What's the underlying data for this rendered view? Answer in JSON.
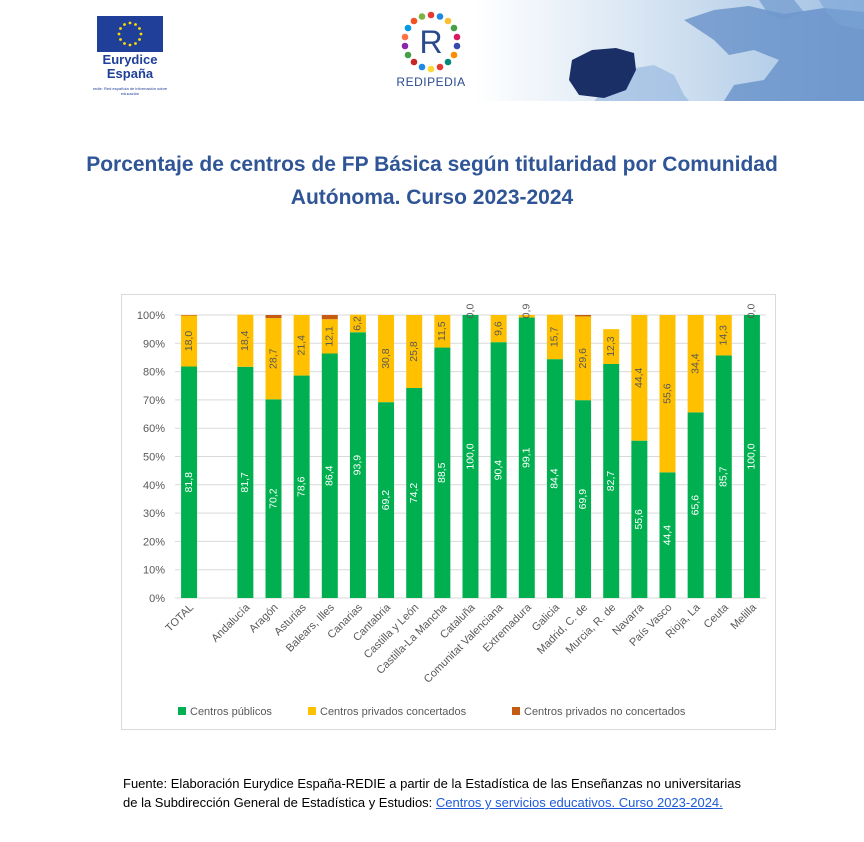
{
  "header": {
    "eurydice_line1": "Eurydice",
    "eurydice_line2": "España",
    "eurydice_tagline": "redie: Red española de información sobre educación",
    "redipedia_logo_letter": "R",
    "redipedia_label": "REDIPEDIA"
  },
  "title": "Porcentaje de centros de FP Básica según titularidad por Comunidad Autónoma. Curso 2023-2024",
  "chart_data": {
    "type": "bar",
    "stacked": true,
    "orientation": "vertical",
    "categories": [
      "TOTAL",
      "",
      "Andalucía",
      "Aragón",
      "Asturias",
      "Balears, Illes",
      "Canarias",
      "Cantabria",
      "Castilla y León",
      "Castilla-La Mancha",
      "Cataluña",
      "Comunitat Valenciana",
      "Extremadura",
      "Galicia",
      "Madrid, C. de",
      "Murcia, R. de",
      "Navarra",
      "País Vasco",
      "Rioja, La",
      "Ceuta",
      "Melilla"
    ],
    "series": [
      {
        "name": "Centros públicos",
        "color": "#00b050",
        "values": [
          81.8,
          null,
          81.7,
          70.2,
          78.6,
          86.4,
          93.9,
          69.2,
          74.2,
          88.5,
          100.0,
          90.4,
          99.1,
          84.4,
          69.9,
          82.7,
          55.6,
          44.4,
          65.6,
          85.7,
          100.0
        ],
        "labels": [
          "81,8",
          "",
          "81,7",
          "70,2",
          "78,6",
          "86,4",
          "93,9",
          "69,2",
          "74,2",
          "88,5",
          "100,0",
          "90,4",
          "99,1",
          "84,4",
          "69,9",
          "82,7",
          "55,6",
          "44,4",
          "65,6",
          "85,7",
          "100,0"
        ]
      },
      {
        "name": "Centros privados concertados",
        "color": "#ffc000",
        "values": [
          18.0,
          null,
          18.4,
          28.7,
          21.4,
          12.1,
          6.2,
          30.8,
          25.8,
          11.5,
          0.0,
          9.6,
          0.9,
          15.7,
          29.6,
          12.3,
          44.4,
          55.6,
          34.4,
          14.3,
          0.0
        ],
        "labels": [
          "18,0",
          "",
          "18,4",
          "28,7",
          "21,4",
          "12,1",
          "6,2",
          "30,8",
          "25,8",
          "11,5",
          "0,0",
          "9,6",
          "0,9",
          "15,7",
          "29,6",
          "12,3",
          "44,4",
          "55,6",
          "34,4",
          "14,3",
          "0,0"
        ]
      },
      {
        "name": "Centros privados no concertados",
        "color": "#c55a11",
        "values": [
          0.2,
          null,
          0.0,
          1.1,
          0.0,
          1.5,
          0.0,
          0.0,
          0.0,
          0.0,
          0.0,
          0.0,
          0.0,
          0.0,
          0.5,
          0.0,
          0.0,
          0.0,
          0.0,
          0.0,
          0.0
        ]
      }
    ],
    "y_ticks": [
      "0%",
      "10%",
      "20%",
      "30%",
      "40%",
      "50%",
      "60%",
      "70%",
      "80%",
      "90%",
      "100%"
    ],
    "ylim": [
      0,
      100
    ],
    "grid": true,
    "legend_position": "bottom"
  },
  "source": {
    "text": "Fuente: Elaboración Eurydice España-REDIE a partir de la Estadística de las Enseñanzas no universitarias de la Subdirección General de Estadística y Estudios: ",
    "link_text": "Centros y servicios educativos. Curso 2023-2024."
  }
}
